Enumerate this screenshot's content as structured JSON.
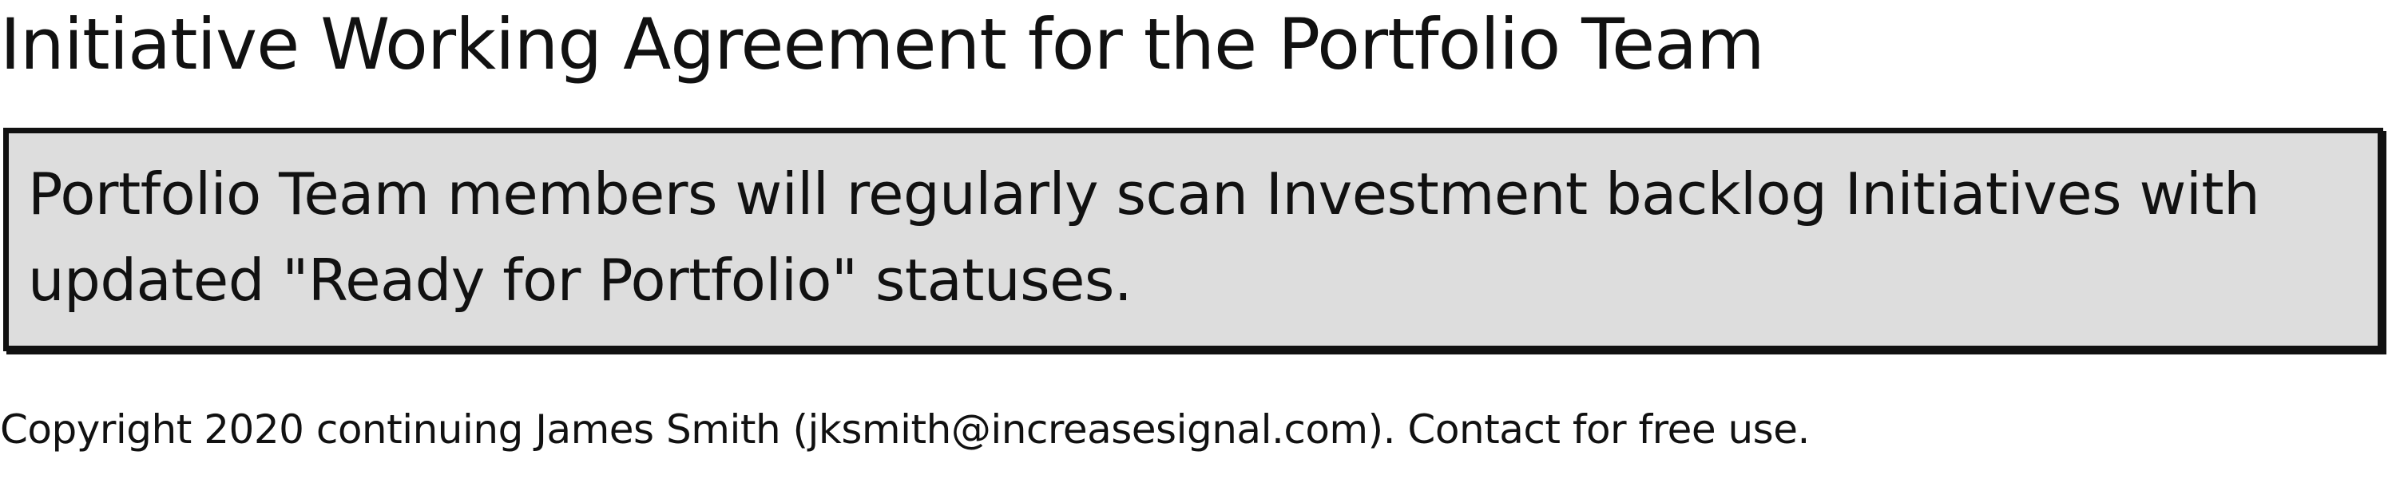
{
  "title": "Initiative Working Agreement for the Portfolio Team",
  "note": {
    "text": "Portfolio Team members will regularly scan Investment backlog Initiatives with updated \"Ready for Portfolio\" statuses.",
    "background_color": "#dddddd",
    "border_color": "#111111"
  },
  "footer": {
    "copyright": "Copyright 2020 continuing James Smith (jksmith@increasesignal.com). Contact for free use."
  }
}
